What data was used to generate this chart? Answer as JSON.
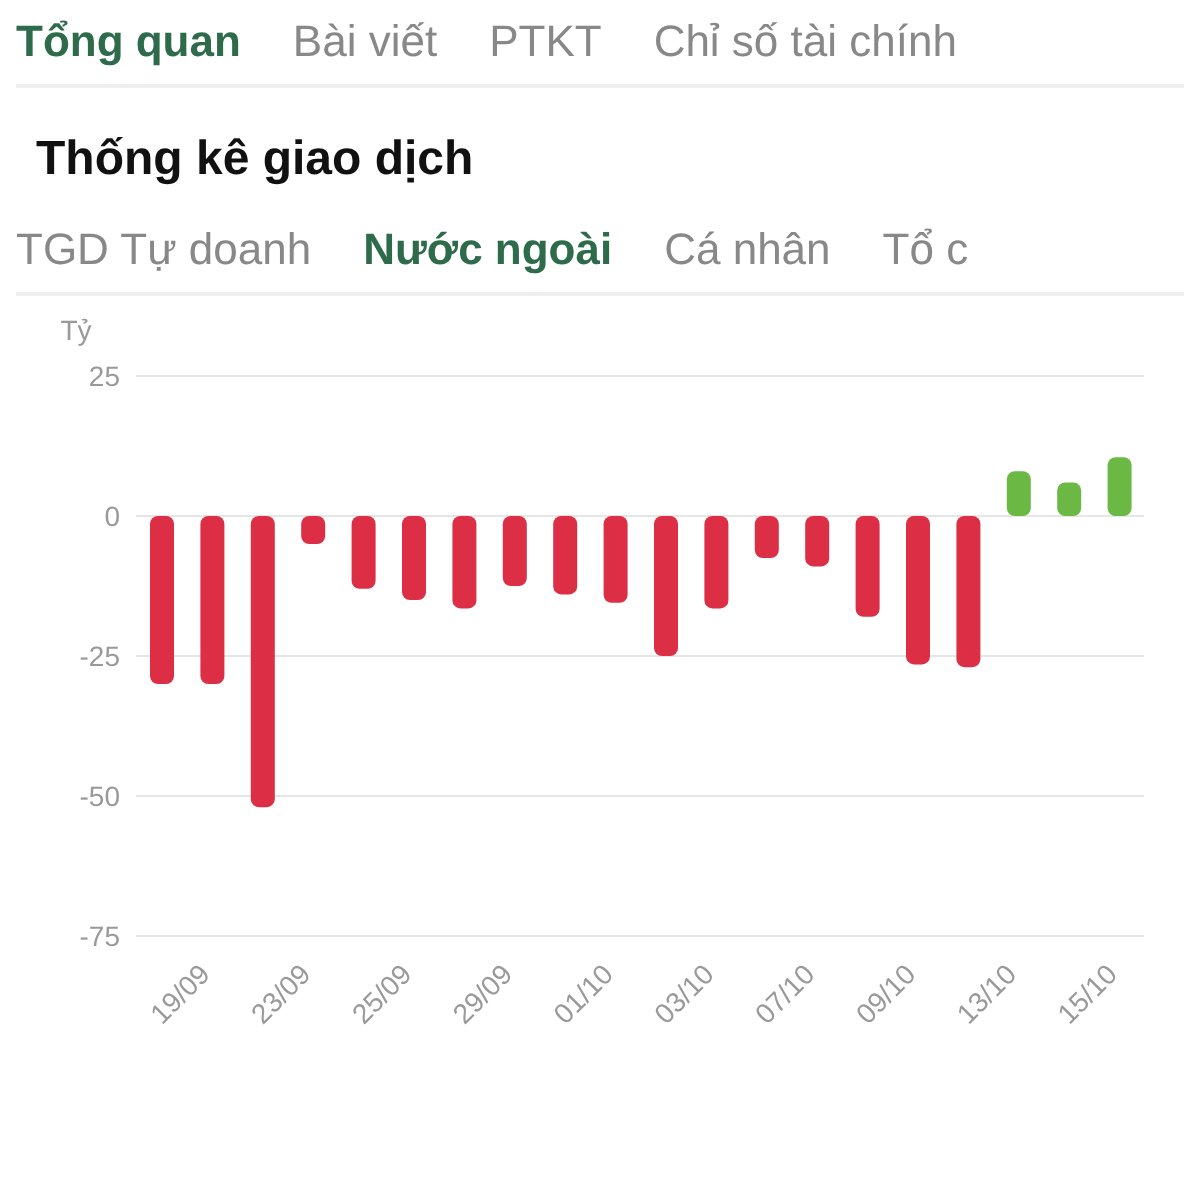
{
  "chart_data": {
    "type": "bar",
    "title": "Thống kê giao dịch",
    "ylabel": "Tỷ",
    "annotations": [
      "Tổng quan",
      "Bài viết",
      "PTKT",
      "Chỉ số tài chính",
      "TGD Tự doanh",
      "Nước ngoài",
      "Cá nhân",
      "Tổ c"
    ],
    "categories": [
      null,
      "19/09",
      null,
      "23/09",
      null,
      "25/09",
      null,
      "29/09",
      null,
      "01/10",
      null,
      "03/10",
      null,
      "07/10",
      null,
      "09/10",
      null,
      "13/10",
      null,
      "15/10"
    ],
    "values": [
      -30,
      -30,
      -52,
      -5,
      -13,
      -15,
      -16.5,
      -12.5,
      -14,
      -15.5,
      -25,
      -16.5,
      -7.5,
      -9,
      -18,
      -26.5,
      -27,
      8,
      6,
      10.5
    ],
    "colors": [
      "#dc2f45",
      "#dc2f45",
      "#dc2f45",
      "#dc2f45",
      "#dc2f45",
      "#dc2f45",
      "#dc2f45",
      "#dc2f45",
      "#dc2f45",
      "#dc2f45",
      "#dc2f45",
      "#dc2f45",
      "#dc2f45",
      "#dc2f45",
      "#dc2f45",
      "#dc2f45",
      "#dc2f45",
      "#6cb845",
      "#6cb845",
      "#6cb845"
    ],
    "ylim": [
      -75,
      25
    ],
    "yticks": [
      -75,
      -50,
      -25,
      0,
      25
    ],
    "grid": "y"
  }
}
